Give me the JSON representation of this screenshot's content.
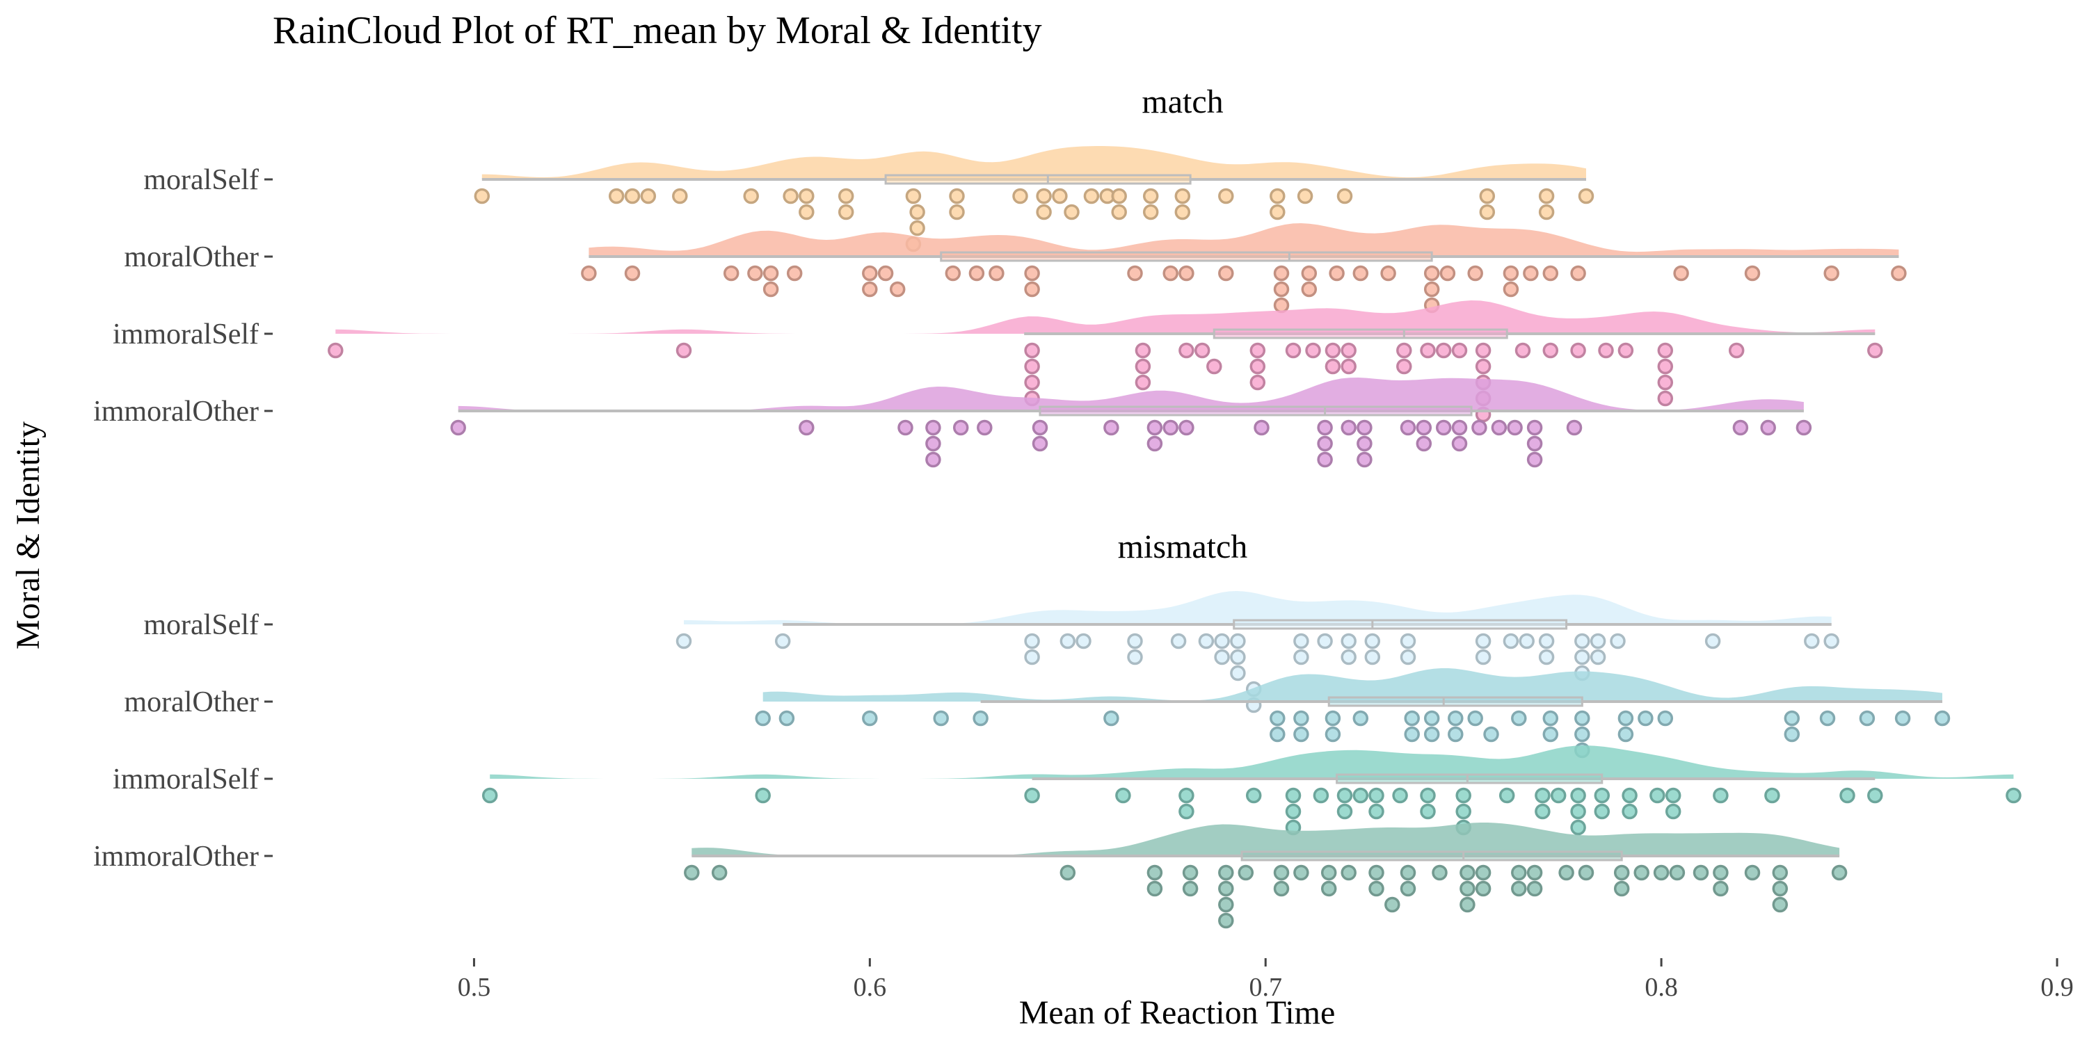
{
  "chart_data": {
    "type": "raincloud",
    "title": "RainCloud Plot of RT_mean by Moral & Identity",
    "xlabel": "Mean of Reaction Time",
    "ylabel": "Moral & Identity",
    "xlim": [
      0.45,
      0.9
    ],
    "xticks": [
      "0.5",
      "0.6",
      "0.7",
      "0.8",
      "0.9"
    ],
    "grid": false,
    "legend": "none",
    "panels": [
      {
        "name": "match",
        "groups": [
          {
            "label": "moralSelf",
            "color": "#FDD5A4",
            "box": {
              "min": 0.502,
              "q1": 0.604,
              "median": 0.645,
              "q3": 0.681,
              "max": 0.781
            },
            "points": [
              0.502,
              0.536,
              0.54,
              0.544,
              0.552,
              0.57,
              0.58,
              0.584,
              0.584,
              0.594,
              0.594,
              0.611,
              0.612,
              0.612,
              0.611,
              0.622,
              0.622,
              0.638,
              0.644,
              0.644,
              0.648,
              0.651,
              0.656,
              0.66,
              0.663,
              0.663,
              0.671,
              0.671,
              0.679,
              0.679,
              0.69,
              0.703,
              0.703,
              0.71,
              0.72,
              0.756,
              0.756,
              0.771,
              0.771,
              0.781
            ]
          },
          {
            "label": "moralOther",
            "color": "#F9B9A5",
            "box": {
              "min": 0.529,
              "q1": 0.618,
              "median": 0.706,
              "q3": 0.742,
              "max": 0.86
            },
            "points": [
              0.529,
              0.54,
              0.565,
              0.571,
              0.575,
              0.575,
              0.581,
              0.6,
              0.6,
              0.604,
              0.607,
              0.621,
              0.627,
              0.632,
              0.641,
              0.641,
              0.667,
              0.676,
              0.68,
              0.69,
              0.704,
              0.704,
              0.704,
              0.711,
              0.711,
              0.718,
              0.724,
              0.731,
              0.742,
              0.742,
              0.742,
              0.746,
              0.753,
              0.762,
              0.762,
              0.767,
              0.772,
              0.779,
              0.805,
              0.823,
              0.843,
              0.86
            ]
          },
          {
            "label": "immoralSelf",
            "color": "#F8A7CF",
            "box": {
              "min": 0.639,
              "q1": 0.687,
              "median": 0.735,
              "q3": 0.761,
              "max": 0.854
            },
            "points": [
              0.465,
              0.553,
              0.641,
              0.641,
              0.641,
              0.641,
              0.669,
              0.669,
              0.669,
              0.68,
              0.684,
              0.687,
              0.698,
              0.698,
              0.698,
              0.707,
              0.712,
              0.717,
              0.717,
              0.721,
              0.721,
              0.735,
              0.735,
              0.741,
              0.745,
              0.749,
              0.755,
              0.755,
              0.755,
              0.755,
              0.755,
              0.765,
              0.772,
              0.779,
              0.786,
              0.791,
              0.801,
              0.801,
              0.801,
              0.801,
              0.819,
              0.854
            ]
          },
          {
            "label": "immoralOther",
            "color": "#DDA0DD",
            "box": {
              "min": 0.496,
              "q1": 0.643,
              "median": 0.715,
              "q3": 0.752,
              "max": 0.836
            },
            "points": [
              0.496,
              0.584,
              0.609,
              0.616,
              0.616,
              0.616,
              0.623,
              0.629,
              0.643,
              0.643,
              0.661,
              0.672,
              0.672,
              0.676,
              0.68,
              0.699,
              0.715,
              0.715,
              0.715,
              0.721,
              0.725,
              0.725,
              0.725,
              0.736,
              0.74,
              0.74,
              0.745,
              0.749,
              0.749,
              0.754,
              0.759,
              0.763,
              0.768,
              0.768,
              0.768,
              0.778,
              0.82,
              0.827,
              0.836
            ]
          }
        ]
      },
      {
        "name": "mismatch",
        "groups": [
          {
            "label": "moralSelf",
            "color": "#DAF0FA",
            "box": {
              "min": 0.578,
              "q1": 0.692,
              "median": 0.727,
              "q3": 0.776,
              "max": 0.843
            },
            "points": [
              0.553,
              0.578,
              0.641,
              0.641,
              0.65,
              0.654,
              0.667,
              0.667,
              0.678,
              0.685,
              0.689,
              0.689,
              0.693,
              0.693,
              0.693,
              0.697,
              0.697,
              0.709,
              0.709,
              0.715,
              0.721,
              0.721,
              0.727,
              0.727,
              0.736,
              0.736,
              0.755,
              0.755,
              0.762,
              0.766,
              0.771,
              0.771,
              0.78,
              0.78,
              0.78,
              0.784,
              0.784,
              0.789,
              0.813,
              0.838,
              0.843
            ]
          },
          {
            "label": "moralOther",
            "color": "#A7D9E1",
            "box": {
              "min": 0.628,
              "q1": 0.716,
              "median": 0.745,
              "q3": 0.78,
              "max": 0.871
            },
            "points": [
              0.573,
              0.579,
              0.6,
              0.618,
              0.628,
              0.661,
              0.703,
              0.703,
              0.709,
              0.709,
              0.717,
              0.717,
              0.724,
              0.737,
              0.737,
              0.742,
              0.742,
              0.748,
              0.748,
              0.753,
              0.757,
              0.764,
              0.772,
              0.772,
              0.78,
              0.78,
              0.78,
              0.791,
              0.791,
              0.796,
              0.801,
              0.833,
              0.833,
              0.842,
              0.852,
              0.861,
              0.871
            ]
          },
          {
            "label": "immoralSelf",
            "color": "#8BD3C7",
            "box": {
              "min": 0.641,
              "q1": 0.718,
              "median": 0.751,
              "q3": 0.785,
              "max": 0.854
            },
            "points": [
              0.504,
              0.573,
              0.641,
              0.664,
              0.68,
              0.68,
              0.697,
              0.707,
              0.707,
              0.707,
              0.714,
              0.72,
              0.72,
              0.724,
              0.728,
              0.728,
              0.734,
              0.741,
              0.741,
              0.75,
              0.75,
              0.75,
              0.761,
              0.77,
              0.77,
              0.774,
              0.779,
              0.779,
              0.779,
              0.785,
              0.785,
              0.792,
              0.792,
              0.799,
              0.803,
              0.803,
              0.815,
              0.828,
              0.847,
              0.854,
              0.889
            ]
          },
          {
            "label": "immoralOther",
            "color": "#92C4B7",
            "box": {
              "min": 0.555,
              "q1": 0.694,
              "median": 0.75,
              "q3": 0.79,
              "max": 0.845
            },
            "points": [
              0.555,
              0.562,
              0.65,
              0.672,
              0.672,
              0.681,
              0.681,
              0.69,
              0.69,
              0.69,
              0.69,
              0.695,
              0.704,
              0.704,
              0.709,
              0.716,
              0.716,
              0.721,
              0.728,
              0.728,
              0.732,
              0.736,
              0.736,
              0.744,
              0.751,
              0.751,
              0.751,
              0.755,
              0.755,
              0.764,
              0.764,
              0.768,
              0.768,
              0.776,
              0.781,
              0.79,
              0.79,
              0.795,
              0.8,
              0.804,
              0.81,
              0.815,
              0.815,
              0.823,
              0.83,
              0.83,
              0.83,
              0.845
            ]
          }
        ]
      }
    ]
  }
}
